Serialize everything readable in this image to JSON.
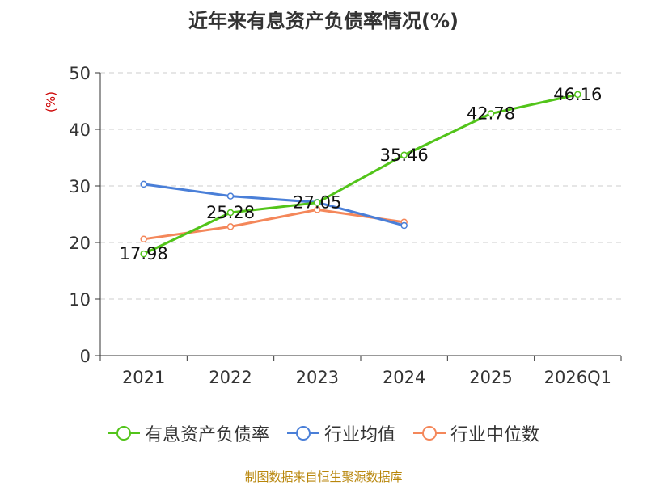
{
  "chart_data": {
    "type": "line",
    "title": "近年来有息资产负债率情况(%)",
    "ylabel": "(%)",
    "xlabel": "",
    "categories": [
      "2021",
      "2022",
      "2023",
      "2024",
      "2025",
      "2026Q1"
    ],
    "ylim": [
      0,
      50
    ],
    "yticks": [
      0,
      10,
      20,
      30,
      40,
      50
    ],
    "grid": true,
    "series": [
      {
        "name": "有息资产负债率",
        "color": "#52c41a",
        "values": [
          17.98,
          25.28,
          27.05,
          35.46,
          42.78,
          46.16
        ],
        "show_labels": true
      },
      {
        "name": "行业均值",
        "color": "#4a7fd8",
        "values": [
          30.3,
          28.2,
          27.1,
          23.0,
          null,
          null
        ],
        "show_labels": false
      },
      {
        "name": "行业中位数",
        "color": "#f4875a",
        "values": [
          20.6,
          22.8,
          25.8,
          23.6,
          null,
          null
        ],
        "show_labels": false
      }
    ],
    "legend_position": "bottom"
  },
  "footer": "制图数据来自恒生聚源数据库"
}
